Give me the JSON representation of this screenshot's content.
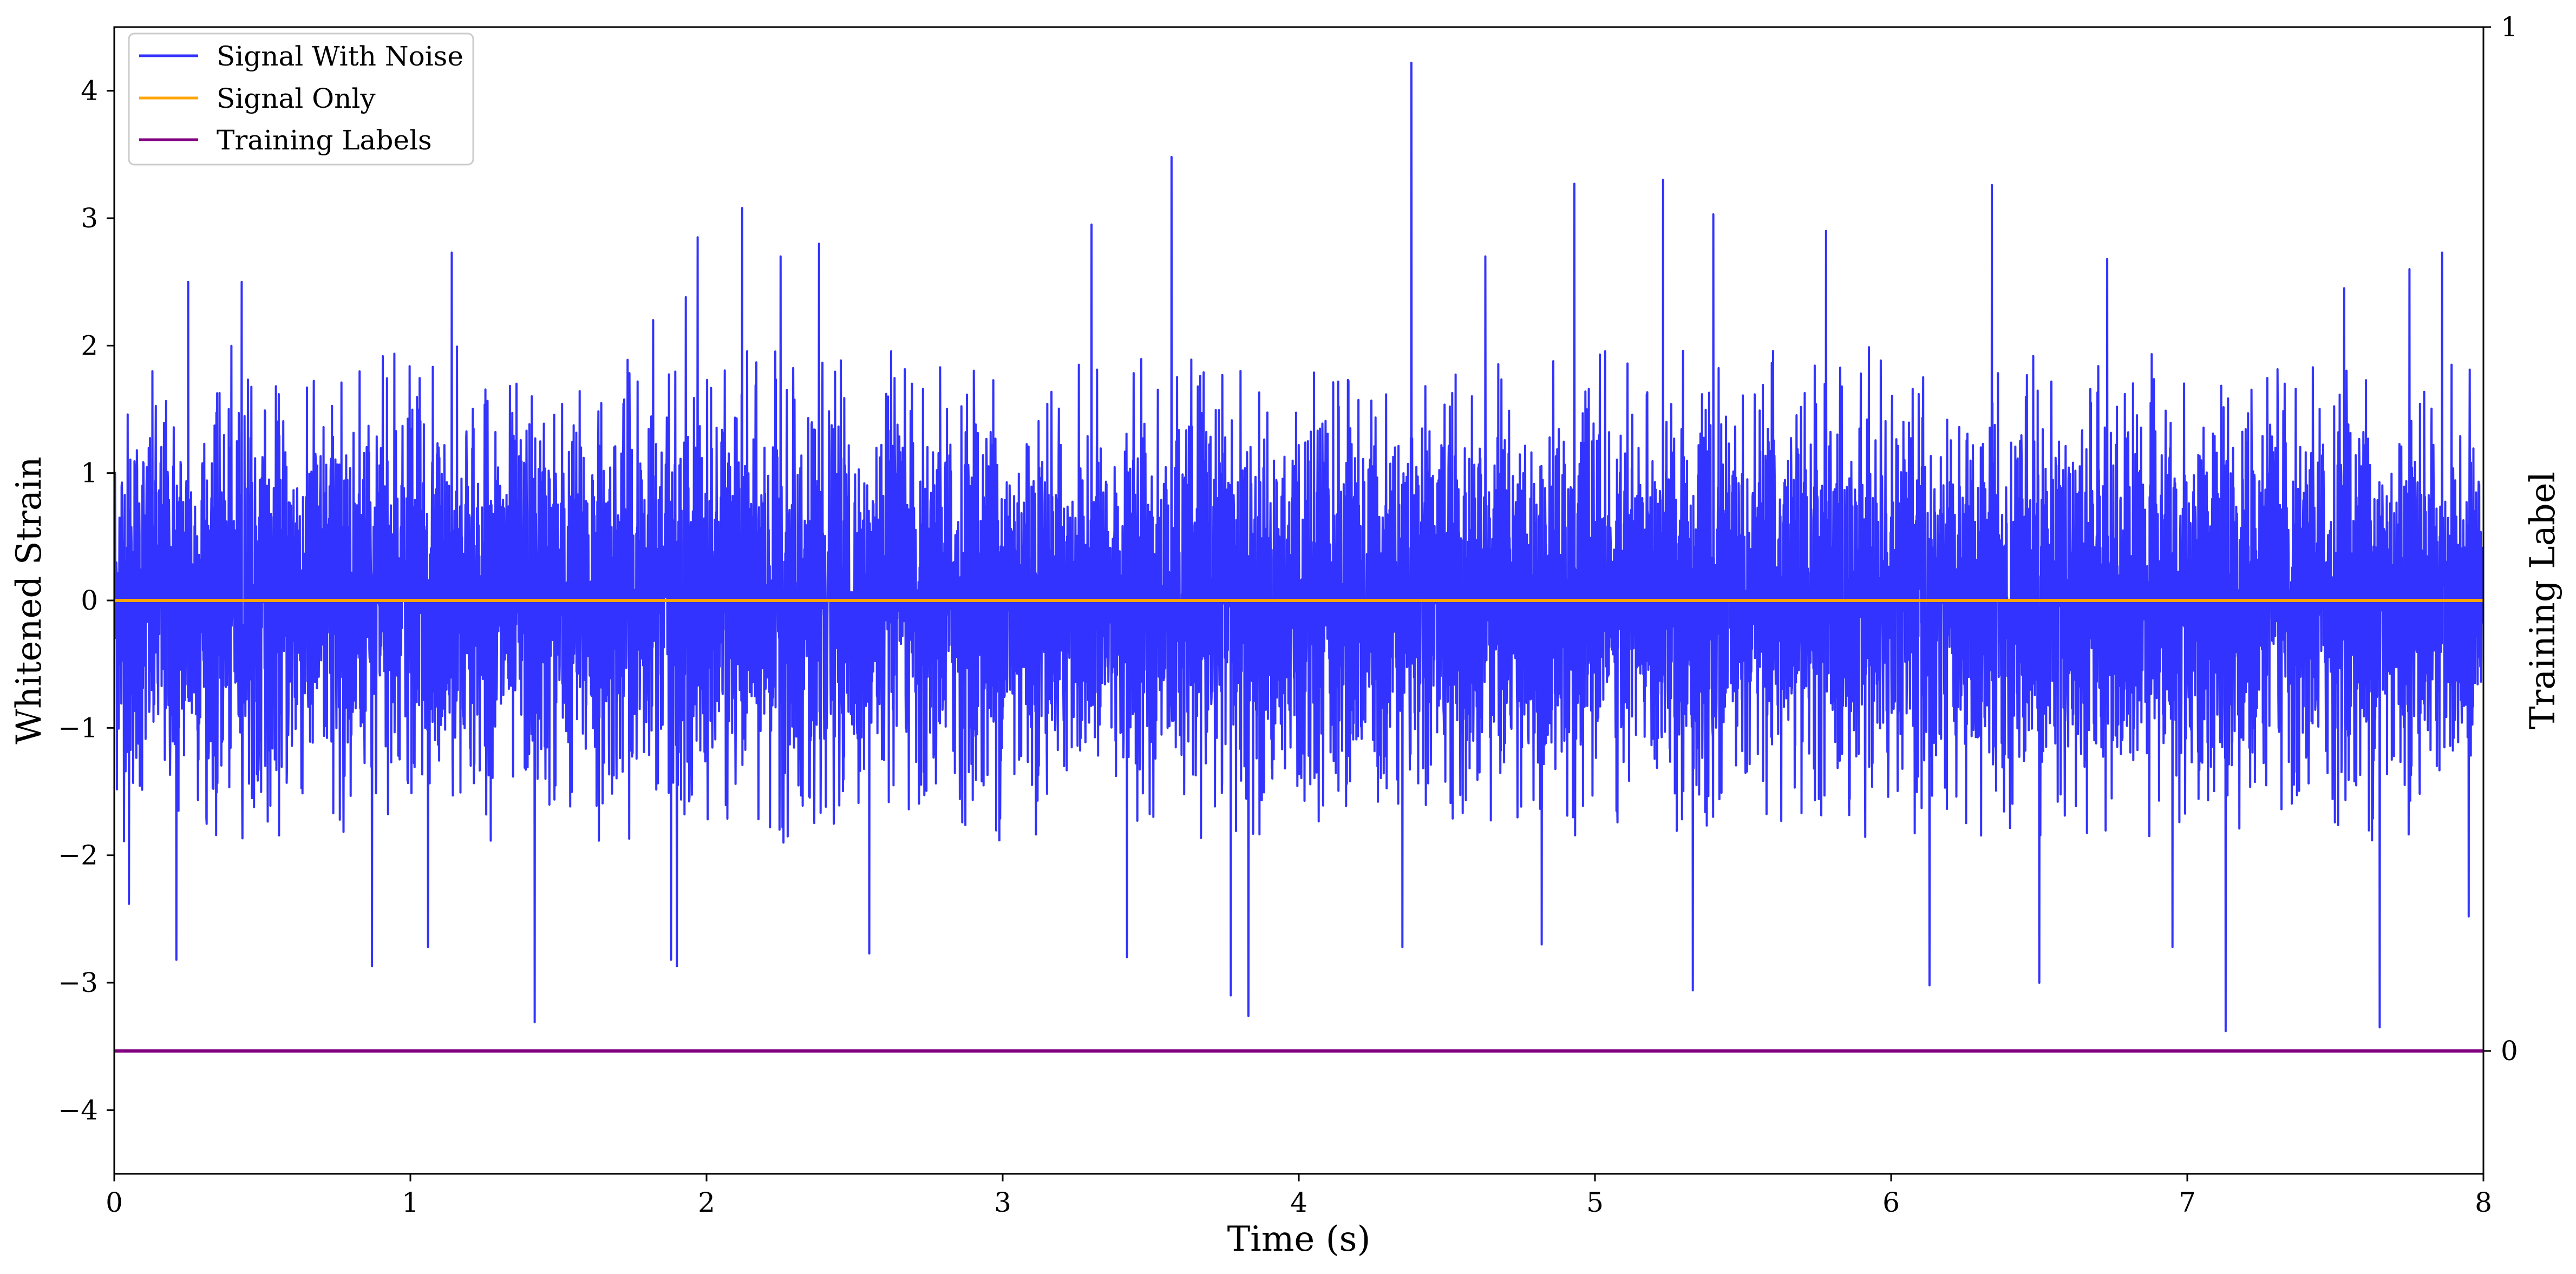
{
  "chart_data": {
    "type": "line",
    "title": "",
    "xlabel": "Time (s)",
    "ylabel": "Whitened Strain",
    "y2label": "Training Label",
    "xlim": [
      0,
      8
    ],
    "ylim": [
      -4.5,
      4.5
    ],
    "y2lim": [
      -0.12,
      1.0
    ],
    "x_ticks": [
      "0",
      "1",
      "2",
      "3",
      "4",
      "5",
      "6",
      "7",
      "8"
    ],
    "y_ticks": [
      "−4",
      "−3",
      "−2",
      "−1",
      "0",
      "1",
      "2",
      "3",
      "4"
    ],
    "y2_ticks": [
      "0",
      "1"
    ],
    "grid": false,
    "legend_position": "top-left",
    "series": [
      {
        "name": "Signal With Noise",
        "color": "#3333ff",
        "axis": "left",
        "description_of_values": "dense noise",
        "noise_envelope": {
          "typical_min": -1.9,
          "typical_max": 2.0
        },
        "peaks": [
          {
            "x": 0.05,
            "y": 2.3
          },
          {
            "x": 0.25,
            "y": 2.5
          },
          {
            "x": 0.43,
            "y": 2.5
          },
          {
            "x": 1.14,
            "y": 2.73
          },
          {
            "x": 1.82,
            "y": 2.2
          },
          {
            "x": 1.93,
            "y": 2.38
          },
          {
            "x": 1.97,
            "y": 2.85
          },
          {
            "x": 2.12,
            "y": 3.08
          },
          {
            "x": 2.25,
            "y": 2.7
          },
          {
            "x": 2.38,
            "y": 2.8
          },
          {
            "x": 3.3,
            "y": 2.95
          },
          {
            "x": 3.57,
            "y": 3.48
          },
          {
            "x": 3.77,
            "y": 2.7
          },
          {
            "x": 4.38,
            "y": 4.22
          },
          {
            "x": 4.63,
            "y": 2.7
          },
          {
            "x": 4.93,
            "y": 3.27
          },
          {
            "x": 5.23,
            "y": 3.3
          },
          {
            "x": 5.4,
            "y": 3.03
          },
          {
            "x": 5.78,
            "y": 2.9
          },
          {
            "x": 6.34,
            "y": 3.26
          },
          {
            "x": 6.73,
            "y": 2.68
          },
          {
            "x": 7.53,
            "y": 2.45
          },
          {
            "x": 7.75,
            "y": 2.6
          },
          {
            "x": 7.86,
            "y": 2.73
          }
        ],
        "troughs": [
          {
            "x": 0.05,
            "y": -2.38
          },
          {
            "x": 0.21,
            "y": -2.82
          },
          {
            "x": 0.87,
            "y": -2.87
          },
          {
            "x": 1.06,
            "y": -2.72
          },
          {
            "x": 1.42,
            "y": -3.31
          },
          {
            "x": 1.88,
            "y": -2.82
          },
          {
            "x": 1.9,
            "y": -2.87
          },
          {
            "x": 2.55,
            "y": -2.77
          },
          {
            "x": 3.42,
            "y": -2.8
          },
          {
            "x": 3.77,
            "y": -3.1
          },
          {
            "x": 3.83,
            "y": -3.26
          },
          {
            "x": 4.35,
            "y": -2.72
          },
          {
            "x": 4.82,
            "y": -2.7
          },
          {
            "x": 5.33,
            "y": -3.06
          },
          {
            "x": 6.13,
            "y": -3.02
          },
          {
            "x": 6.5,
            "y": -3.0
          },
          {
            "x": 6.95,
            "y": -2.72
          },
          {
            "x": 7.13,
            "y": -3.38
          },
          {
            "x": 7.65,
            "y": -3.35
          },
          {
            "x": 7.95,
            "y": -2.48
          }
        ]
      },
      {
        "name": "Signal Only",
        "color": "#ffa500",
        "axis": "left",
        "x": [
          0,
          8
        ],
        "values": [
          0,
          0
        ]
      },
      {
        "name": "Training Labels",
        "color": "#800080",
        "axis": "right",
        "x": [
          0,
          8
        ],
        "values": [
          0,
          0
        ]
      }
    ]
  }
}
